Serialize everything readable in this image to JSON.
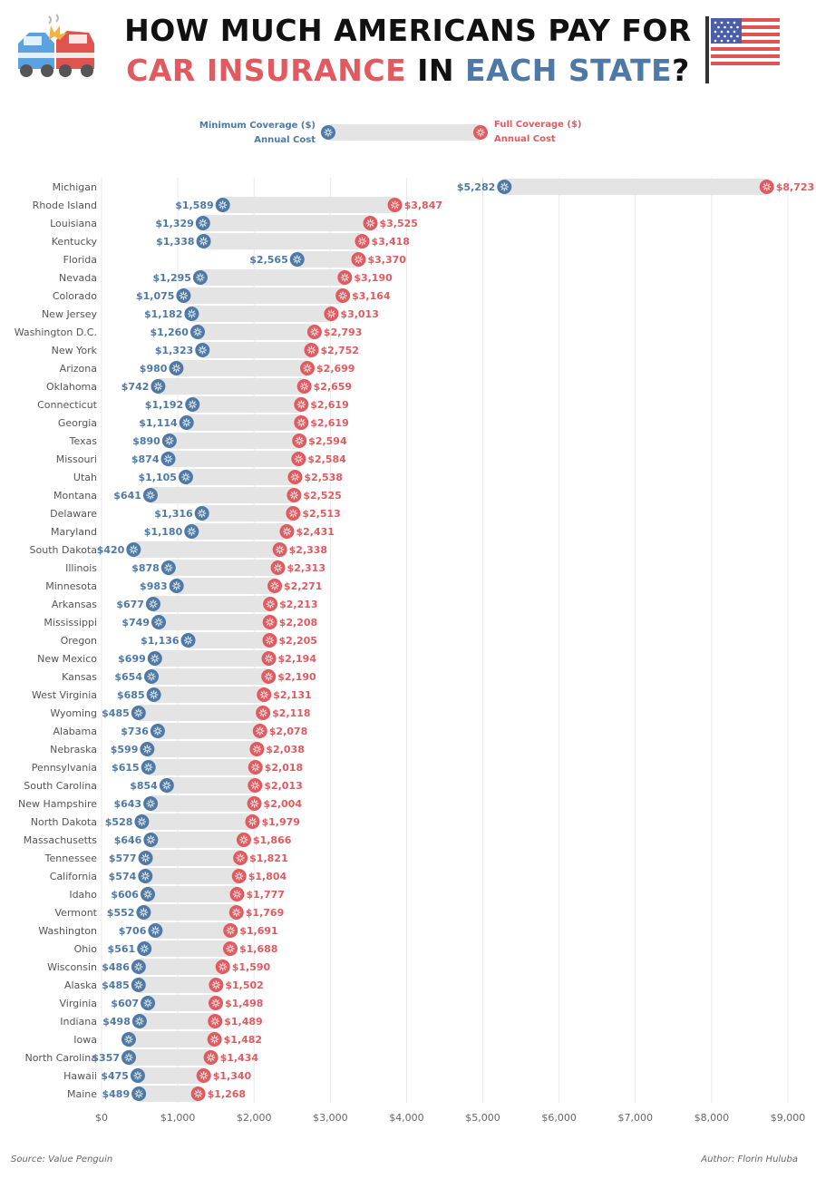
{
  "title": {
    "line1": "HOW MUCH AMERICANS PAY FOR",
    "line2_part1": "CAR INSURANCE",
    "line2_part2": " IN ",
    "line2_part3": "EACH STATE",
    "line2_part4": "?"
  },
  "icons": {
    "left": "car-crash-icon",
    "right": "us-flag-icon"
  },
  "colors": {
    "min": "#4e79a7",
    "full": "#e05a5f",
    "bar": "#e4e4e4",
    "grid": "#e8e8e8",
    "text": "#555555"
  },
  "footer": {
    "source": "Source: Value Penguin",
    "author": "Author: Florin Huluba"
  },
  "chart_data": {
    "type": "dumbbell",
    "legend": {
      "min_line1": "Minimum Coverage ($)",
      "min_line2": "Annual Cost",
      "full_line1": "Full Coverage ($)",
      "full_line2": "Annual Cost"
    },
    "xlim": [
      0,
      9000
    ],
    "xticks": [
      0,
      1000,
      2000,
      3000,
      4000,
      5000,
      6000,
      7000,
      8000,
      9000
    ],
    "xtick_labels": [
      "$0",
      "$1,000",
      "$2,000",
      "$3,000",
      "$4,000",
      "$5,000",
      "$6,000",
      "$7,000",
      "$8,000",
      "$9,000"
    ],
    "rows": [
      {
        "state": "Michigan",
        "min": 5282,
        "full": 8723,
        "min_label": "$5,282",
        "full_label": "$8,723"
      },
      {
        "state": "Rhode Island",
        "min": 1589,
        "full": 3847,
        "min_label": "$1,589",
        "full_label": "$3,847"
      },
      {
        "state": "Louisiana",
        "min": 1329,
        "full": 3525,
        "min_label": "$1,329",
        "full_label": "$3,525"
      },
      {
        "state": "Kentucky",
        "min": 1338,
        "full": 3418,
        "min_label": "$1,338",
        "full_label": "$3,418"
      },
      {
        "state": "Florida",
        "min": 2565,
        "full": 3370,
        "min_label": "$2,565",
        "full_label": "$3,370"
      },
      {
        "state": "Nevada",
        "min": 1295,
        "full": 3190,
        "min_label": "$1,295",
        "full_label": "$3,190"
      },
      {
        "state": "Colorado",
        "min": 1075,
        "full": 3164,
        "min_label": "$1,075",
        "full_label": "$3,164"
      },
      {
        "state": "New Jersey",
        "min": 1182,
        "full": 3013,
        "min_label": "$1,182",
        "full_label": "$3,013"
      },
      {
        "state": "Washington D.C.",
        "min": 1260,
        "full": 2793,
        "min_label": "$1,260",
        "full_label": "$2,793"
      },
      {
        "state": "New York",
        "min": 1323,
        "full": 2752,
        "min_label": "$1,323",
        "full_label": "$2,752"
      },
      {
        "state": "Arizona",
        "min": 980,
        "full": 2699,
        "min_label": "$980",
        "full_label": "$2,699"
      },
      {
        "state": "Oklahoma",
        "min": 742,
        "full": 2659,
        "min_label": "$742",
        "full_label": "$2,659"
      },
      {
        "state": "Connecticut",
        "min": 1192,
        "full": 2619,
        "min_label": "$1,192",
        "full_label": "$2,619"
      },
      {
        "state": "Georgia",
        "min": 1114,
        "full": 2619,
        "min_label": "$1,114",
        "full_label": "$2,619"
      },
      {
        "state": "Texas",
        "min": 890,
        "full": 2594,
        "min_label": "$890",
        "full_label": "$2,594"
      },
      {
        "state": "Missouri",
        "min": 874,
        "full": 2584,
        "min_label": "$874",
        "full_label": "$2,584"
      },
      {
        "state": "Utah",
        "min": 1105,
        "full": 2538,
        "min_label": "$1,105",
        "full_label": "$2,538"
      },
      {
        "state": "Montana",
        "min": 641,
        "full": 2525,
        "min_label": "$641",
        "full_label": "$2,525"
      },
      {
        "state": "Delaware",
        "min": 1316,
        "full": 2513,
        "min_label": "$1,316",
        "full_label": "$2,513"
      },
      {
        "state": "Maryland",
        "min": 1180,
        "full": 2431,
        "min_label": "$1,180",
        "full_label": "$2,431"
      },
      {
        "state": "South Dakota",
        "min": 420,
        "full": 2338,
        "min_label": "$420",
        "full_label": "$2,338"
      },
      {
        "state": "Illinois",
        "min": 878,
        "full": 2313,
        "min_label": "$878",
        "full_label": "$2,313"
      },
      {
        "state": "Minnesota",
        "min": 983,
        "full": 2271,
        "min_label": "$983",
        "full_label": "$2,271"
      },
      {
        "state": "Arkansas",
        "min": 677,
        "full": 2213,
        "min_label": "$677",
        "full_label": "$2,213"
      },
      {
        "state": "Mississippi",
        "min": 749,
        "full": 2208,
        "min_label": "$749",
        "full_label": "$2,208"
      },
      {
        "state": "Oregon",
        "min": 1136,
        "full": 2205,
        "min_label": "$1,136",
        "full_label": "$2,205"
      },
      {
        "state": "New Mexico",
        "min": 699,
        "full": 2194,
        "min_label": "$699",
        "full_label": "$2,194"
      },
      {
        "state": "Kansas",
        "min": 654,
        "full": 2190,
        "min_label": "$654",
        "full_label": "$2,190"
      },
      {
        "state": "West Virginia",
        "min": 685,
        "full": 2131,
        "min_label": "$685",
        "full_label": "$2,131"
      },
      {
        "state": "Wyoming",
        "min": 485,
        "full": 2118,
        "min_label": "$485",
        "full_label": "$2,118"
      },
      {
        "state": "Alabama",
        "min": 736,
        "full": 2078,
        "min_label": "$736",
        "full_label": "$2,078"
      },
      {
        "state": "Nebraska",
        "min": 599,
        "full": 2038,
        "min_label": "$599",
        "full_label": "$2,038"
      },
      {
        "state": "Pennsylvania",
        "min": 615,
        "full": 2018,
        "min_label": "$615",
        "full_label": "$2,018"
      },
      {
        "state": "South Carolina",
        "min": 854,
        "full": 2013,
        "min_label": "$854",
        "full_label": "$2,013"
      },
      {
        "state": "New Hampshire",
        "min": 643,
        "full": 2004,
        "min_label": "$643",
        "full_label": "$2,004"
      },
      {
        "state": "North Dakota",
        "min": 528,
        "full": 1979,
        "min_label": "$528",
        "full_label": "$1,979"
      },
      {
        "state": "Massachusetts",
        "min": 646,
        "full": 1866,
        "min_label": "$646",
        "full_label": "$1,866"
      },
      {
        "state": "Tennessee",
        "min": 577,
        "full": 1821,
        "min_label": "$577",
        "full_label": "$1,821"
      },
      {
        "state": "California",
        "min": 574,
        "full": 1804,
        "min_label": "$574",
        "full_label": "$1,804"
      },
      {
        "state": "Idaho",
        "min": 606,
        "full": 1777,
        "min_label": "$606",
        "full_label": "$1,777"
      },
      {
        "state": "Vermont",
        "min": 552,
        "full": 1769,
        "min_label": "$552",
        "full_label": "$1,769"
      },
      {
        "state": "Washington",
        "min": 706,
        "full": 1691,
        "min_label": "$706",
        "full_label": "$1,691"
      },
      {
        "state": "Ohio",
        "min": 561,
        "full": 1688,
        "min_label": "$561",
        "full_label": "$1,688"
      },
      {
        "state": "Wisconsin",
        "min": 486,
        "full": 1590,
        "min_label": "$486",
        "full_label": "$1,590"
      },
      {
        "state": "Alaska",
        "min": 485,
        "full": 1502,
        "min_label": "$485",
        "full_label": "$1,502"
      },
      {
        "state": "Virginia",
        "min": 607,
        "full": 1498,
        "min_label": "$607",
        "full_label": "$1,498"
      },
      {
        "state": "Indiana",
        "min": 498,
        "full": 1489,
        "min_label": "$498",
        "full_label": "$1,489"
      },
      {
        "state": "Iowa",
        "min": 356,
        "full": 1482,
        "min_label": "",
        "full_label": "$1,482"
      },
      {
        "state": "North Carolina",
        "min": 357,
        "full": 1434,
        "min_label": "$357",
        "full_label": "$1,434"
      },
      {
        "state": "Hawaii",
        "min": 475,
        "full": 1340,
        "min_label": "$475",
        "full_label": "$1,340"
      },
      {
        "state": "Maine",
        "min": 489,
        "full": 1268,
        "min_label": "$489",
        "full_label": "$1,268"
      }
    ]
  }
}
